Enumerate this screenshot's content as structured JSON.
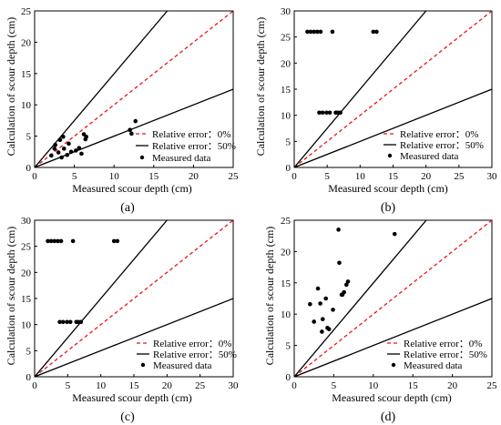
{
  "chart_data": [
    {
      "panel_label": "(a)",
      "type": "scatter",
      "xlabel": "Measured scour depth  (cm)",
      "ylabel": "Calculation of scour depth (cm)",
      "xlim": [
        0,
        25
      ],
      "ylim": [
        0,
        25
      ],
      "xticks": [
        "0",
        "5",
        "10",
        "15",
        "20",
        "25"
      ],
      "yticks": [
        "0",
        "5",
        "10",
        "15",
        "20",
        "25"
      ],
      "legend_position": "bottom-right",
      "series": [
        {
          "name": "Relative error：0%",
          "kind": "line",
          "color": "#e8141c",
          "style": "dashed",
          "points": [
            [
              0,
              0
            ],
            [
              25,
              25
            ]
          ]
        },
        {
          "name": "Relative error：50%",
          "kind": "line",
          "color": "#000000",
          "style": "solid",
          "segments": [
            [
              [
                0,
                0
              ],
              [
                16.7,
                25
              ]
            ],
            [
              [
                0,
                0
              ],
              [
                25,
                12.5
              ]
            ]
          ]
        },
        {
          "name": "Measured data",
          "kind": "scatter",
          "color": "#000000",
          "points": [
            [
              2.1,
              1.9
            ],
            [
              2.5,
              3.0
            ],
            [
              2.6,
              3.6
            ],
            [
              3.0,
              2.4
            ],
            [
              3.2,
              4.4
            ],
            [
              3.4,
              1.6
            ],
            [
              3.6,
              4.9
            ],
            [
              3.7,
              3.0
            ],
            [
              4.1,
              2.0
            ],
            [
              4.3,
              3.8
            ],
            [
              4.6,
              2.5
            ],
            [
              5.2,
              2.7
            ],
            [
              5.6,
              3.1
            ],
            [
              5.9,
              2.2
            ],
            [
              6.2,
              5.3
            ],
            [
              6.4,
              4.5
            ],
            [
              6.5,
              4.9
            ],
            [
              12.0,
              6.0
            ],
            [
              12.2,
              5.4
            ],
            [
              12.7,
              7.4
            ]
          ]
        }
      ]
    },
    {
      "panel_label": "(b)",
      "type": "scatter",
      "xlabel": "Measured scour depth  (cm)",
      "ylabel": "Calculation of scour depth (cm)",
      "xlim": [
        0,
        30
      ],
      "ylim": [
        0,
        30
      ],
      "xticks": [
        "0",
        "5",
        "10",
        "15",
        "20",
        "25",
        "30"
      ],
      "yticks": [
        "0",
        "5",
        "10",
        "15",
        "20",
        "25",
        "30"
      ],
      "legend_position": "bottom-right",
      "series": [
        {
          "name": "Relative error：0%",
          "kind": "line",
          "color": "#e8141c",
          "style": "dashed",
          "points": [
            [
              0,
              0
            ],
            [
              30,
              30
            ]
          ]
        },
        {
          "name": "Relative error：50%",
          "kind": "line",
          "color": "#000000",
          "style": "solid",
          "segments": [
            [
              [
                0,
                0
              ],
              [
                20,
                30
              ]
            ],
            [
              [
                0,
                0
              ],
              [
                30,
                15
              ]
            ]
          ]
        },
        {
          "name": "Measured data",
          "kind": "scatter",
          "color": "#000000",
          "points": [
            [
              2.0,
              26
            ],
            [
              2.5,
              26
            ],
            [
              3.0,
              26
            ],
            [
              3.5,
              26
            ],
            [
              4.0,
              26
            ],
            [
              5.8,
              26
            ],
            [
              12.0,
              26
            ],
            [
              12.5,
              26
            ],
            [
              3.8,
              10.5
            ],
            [
              4.3,
              10.5
            ],
            [
              4.9,
              10.5
            ],
            [
              5.4,
              10.5
            ],
            [
              6.3,
              10.5
            ],
            [
              6.6,
              10.5
            ],
            [
              7.0,
              10.5
            ]
          ]
        }
      ]
    },
    {
      "panel_label": "(c)",
      "type": "scatter",
      "xlabel": "Measured scour depth (cm)",
      "ylabel": "Calculation of scour depth (cm)",
      "xlim": [
        0,
        30
      ],
      "ylim": [
        0,
        30
      ],
      "xticks": [
        "0",
        "5",
        "10",
        "15",
        "20",
        "25",
        "30"
      ],
      "yticks": [
        "0",
        "5",
        "10",
        "15",
        "20",
        "25",
        "30"
      ],
      "legend_position": "bottom-right",
      "series": [
        {
          "name": "Relative error：0%",
          "kind": "line",
          "color": "#e8141c",
          "style": "dashed",
          "points": [
            [
              0,
              0
            ],
            [
              30,
              30
            ]
          ]
        },
        {
          "name": "Relative error：50%",
          "kind": "line",
          "color": "#000000",
          "style": "solid",
          "segments": [
            [
              [
                0,
                0
              ],
              [
                20,
                30
              ]
            ],
            [
              [
                0,
                0
              ],
              [
                30,
                15
              ]
            ]
          ]
        },
        {
          "name": "Measured data",
          "kind": "scatter",
          "color": "#000000",
          "points": [
            [
              2.0,
              26
            ],
            [
              2.5,
              26
            ],
            [
              3.0,
              26
            ],
            [
              3.5,
              26
            ],
            [
              4.0,
              26
            ],
            [
              5.8,
              26
            ],
            [
              12.0,
              26
            ],
            [
              12.5,
              26
            ],
            [
              3.8,
              10.5
            ],
            [
              4.3,
              10.5
            ],
            [
              4.9,
              10.5
            ],
            [
              5.4,
              10.5
            ],
            [
              6.3,
              10.5
            ],
            [
              6.6,
              10.5
            ],
            [
              7.0,
              10.5
            ]
          ]
        }
      ]
    },
    {
      "panel_label": "(d)",
      "type": "scatter",
      "xlabel": "Measured scour depth (cm)",
      "ylabel": "Calculation of scour depth (cm)",
      "xlim": [
        0,
        25
      ],
      "ylim": [
        0,
        25
      ],
      "xticks": [
        "0",
        "5",
        "10",
        "15",
        "20",
        "25"
      ],
      "yticks": [
        "0",
        "5",
        "10",
        "15",
        "20",
        "25"
      ],
      "legend_position": "bottom-right",
      "series": [
        {
          "name": "Relative error：0%",
          "kind": "line",
          "color": "#e8141c",
          "style": "dashed",
          "points": [
            [
              0,
              0
            ],
            [
              25,
              25
            ]
          ]
        },
        {
          "name": "Relative error：50%",
          "kind": "line",
          "color": "#000000",
          "style": "solid",
          "segments": [
            [
              [
                0,
                0
              ],
              [
                16.7,
                25
              ]
            ],
            [
              [
                0,
                0
              ],
              [
                25,
                12.5
              ]
            ]
          ]
        },
        {
          "name": "Measured data",
          "kind": "scatter",
          "color": "#000000",
          "points": [
            [
              2.0,
              11.6
            ],
            [
              2.5,
              8.8
            ],
            [
              3.0,
              14.1
            ],
            [
              3.3,
              11.7
            ],
            [
              3.5,
              7.2
            ],
            [
              3.6,
              9.2
            ],
            [
              4.0,
              12.5
            ],
            [
              4.2,
              7.8
            ],
            [
              4.4,
              7.6
            ],
            [
              4.9,
              10.7
            ],
            [
              5.6,
              23.5
            ],
            [
              5.7,
              18.2
            ],
            [
              6.0,
              13.1
            ],
            [
              6.1,
              13.1
            ],
            [
              6.3,
              13.5
            ],
            [
              6.6,
              14.7
            ],
            [
              6.8,
              15.2
            ],
            [
              12.7,
              22.8
            ]
          ]
        }
      ]
    }
  ]
}
